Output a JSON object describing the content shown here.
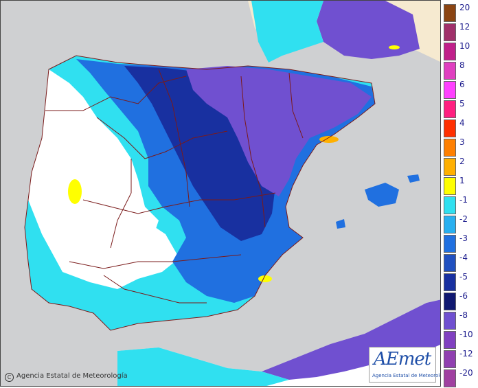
{
  "map": {
    "colors": {
      "sea": "#cfd0d2",
      "land_white": "#ffffff",
      "border": "#7a1a1a"
    }
  },
  "legend": {
    "positive": [
      {
        "label": "20",
        "color": "#8b4513"
      },
      {
        "label": "12",
        "color": "#a0306a"
      },
      {
        "label": "10",
        "color": "#c0208a"
      },
      {
        "label": "8",
        "color": "#e040c0"
      },
      {
        "label": "6",
        "color": "#ff40ff"
      },
      {
        "label": "5",
        "color": "#ff2080"
      },
      {
        "label": "4",
        "color": "#ff3000"
      },
      {
        "label": "3",
        "color": "#ff8000"
      },
      {
        "label": "2",
        "color": "#ffb000"
      },
      {
        "label": "1",
        "color": "#ffff00"
      }
    ],
    "negative": [
      {
        "label": "-1",
        "color": "#30e0f0"
      },
      {
        "label": "-2",
        "color": "#28b0f0"
      },
      {
        "label": "-3",
        "color": "#2070e0"
      },
      {
        "label": "-4",
        "color": "#2050c0"
      },
      {
        "label": "-5",
        "color": "#1830a0"
      },
      {
        "label": "-6",
        "color": "#101870"
      },
      {
        "label": "-8",
        "color": "#7050d0"
      },
      {
        "label": "-10",
        "color": "#8040c0"
      },
      {
        "label": "-12",
        "color": "#9040b0"
      },
      {
        "label": "-20",
        "color": "#a040a0"
      }
    ]
  },
  "footer": {
    "copyright_symbol": "C",
    "copyright_text": "Agencia Estatal de Meteorología"
  },
  "logo": {
    "word": "AEmet",
    "subtitle": "Agencia Estatal de Meteorología"
  }
}
